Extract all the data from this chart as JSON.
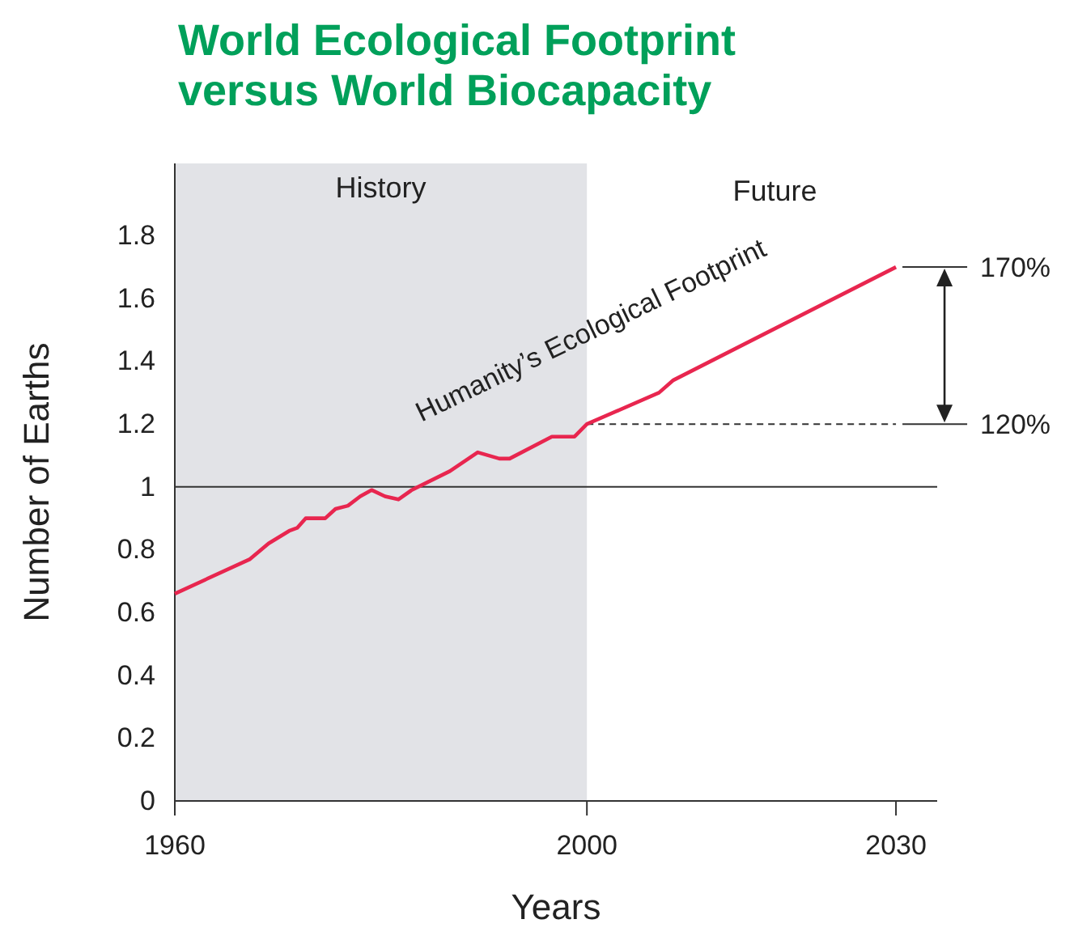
{
  "chart_data": {
    "type": "line",
    "title": "World Ecological Footprint\nversus World Biocapacity",
    "xlabel": "Years",
    "ylabel": "Number of Earths",
    "xlim": [
      1960,
      2034
    ],
    "xticks": [
      1960,
      2000,
      2030
    ],
    "ylim": [
      0,
      2.03
    ],
    "yticks": [
      0,
      {
        "value": 0.2,
        "label": "0.2"
      },
      {
        "value": 0.4,
        "label": "0.4"
      },
      {
        "value": 0.6,
        "label": "0.6"
      },
      {
        "value": 0.8,
        "label": "0.8"
      },
      1,
      {
        "value": 1.2,
        "label": "1.2"
      },
      {
        "value": 1.4,
        "label": "1.4"
      },
      {
        "value": 1.6,
        "label": "1.6"
      },
      {
        "value": 1.8,
        "label": "1.8"
      }
    ],
    "series": [
      {
        "name": "Humanity’s Ecological Footprint",
        "color": "#e8264f",
        "x": [
          1960,
          1967.3,
          1969.1,
          1971.1,
          1971.9,
          1972.7,
          1974.6,
          1975.6,
          1976.8,
          1978,
          1979.1,
          1980.4,
          1981.7,
          1983,
          1986.7,
          1988.5,
          1989.4,
          1991.5,
          1992.5,
          1996.6,
          1998.8,
          2000,
          2007,
          2008.4,
          2030
        ],
        "values": [
          0.66,
          0.77,
          0.82,
          0.86,
          0.87,
          0.9,
          0.9,
          0.93,
          0.94,
          0.97,
          0.99,
          0.97,
          0.96,
          0.99,
          1.05,
          1.09,
          1.11,
          1.09,
          1.09,
          1.16,
          1.16,
          1.2,
          1.3,
          1.34,
          1.7
        ]
      }
    ],
    "bands": [
      {
        "axis": "x",
        "from": 1960,
        "to": 2000,
        "label": "History",
        "color": "#e2e3e7"
      }
    ],
    "ref_lines": [
      {
        "axis": "y",
        "value": 1,
        "color": "#333333"
      },
      {
        "axis": "y",
        "value": 1.2,
        "color": "#333333",
        "line_style": "dashed"
      }
    ],
    "annotations": [
      "Future",
      {
        "text": "170%",
        "x": 2030,
        "y": 1.7
      },
      {
        "text": "120%",
        "x": 2030,
        "y": 1.2
      }
    ]
  }
}
